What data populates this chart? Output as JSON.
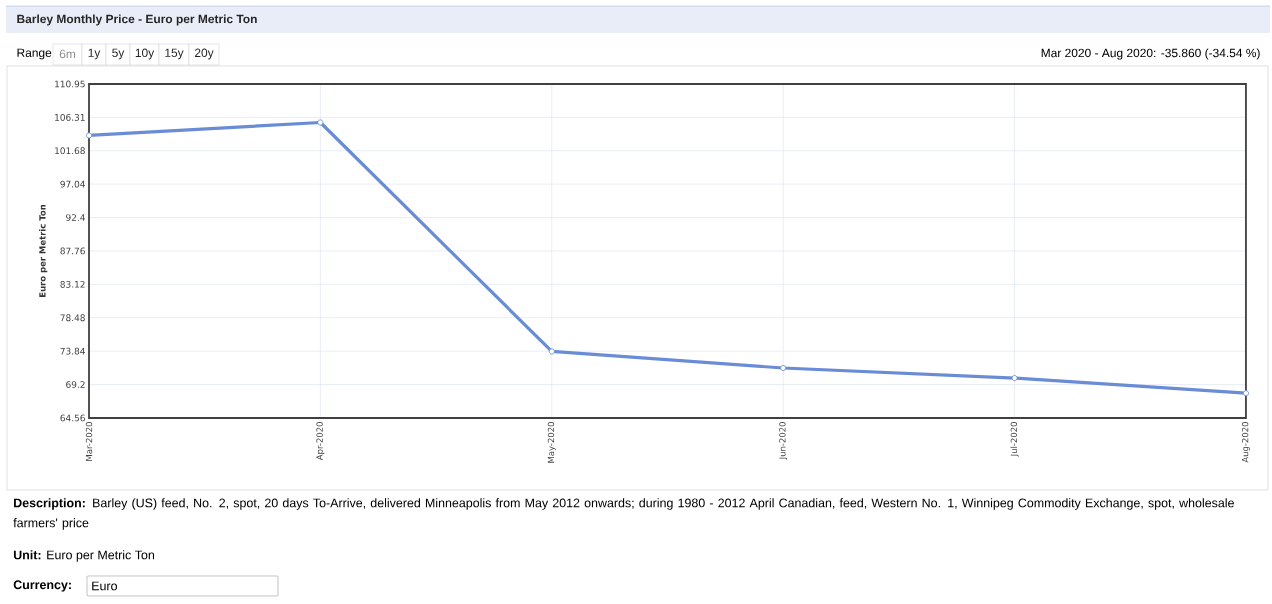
{
  "chart_data": {
    "type": "line",
    "title": "Barley Monthly Price - Euro per Metric Ton",
    "ylabel": "Euro per Metric Ton",
    "categories": [
      "Mar-2020",
      "Apr-2020",
      "May-2020",
      "Jun-2020",
      "Jul-2020",
      "Aug-2020"
    ],
    "series": [
      {
        "color": "#6a8cd6",
        "values": [
          103.8,
          105.6,
          73.8,
          71.5,
          70.1,
          68.0
        ]
      }
    ],
    "ylim": [
      64.56,
      110.95
    ],
    "yticks": [
      64.56,
      69.2,
      73.84,
      78.48,
      83.12,
      87.76,
      92.4,
      97.04,
      101.68,
      106.31,
      110.95
    ],
    "grid": true,
    "marker": "circle",
    "line_style": "solid",
    "annotations": [
      "Range",
      "6m",
      "1y",
      "5y",
      "10y",
      "15y",
      "20y",
      "Mar 2020 - Aug 2020: -35.860 (-34.54 %)",
      "**Description:** Barley (US) feed, No. 2, spot, 20 days To-Arrive, delivered Minneapolis from May 2012 onwards; during 1980 - 2012 April Canadian, feed, Western No. 1, Winnipeg Commodity Exchange, spot, wholesale farmers' price",
      "**Unit:** Euro per Metric Ton",
      "**Currency:**",
      "Euro"
    ]
  }
}
